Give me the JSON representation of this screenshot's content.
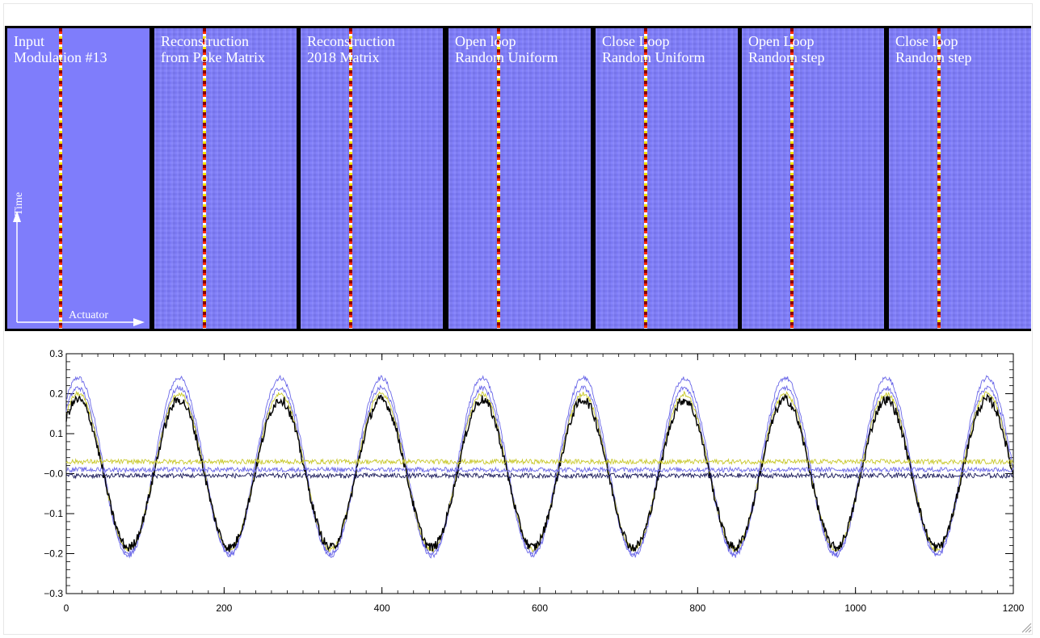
{
  "panels": [
    {
      "line1": "Input",
      "line2": "Modulation #13",
      "noisy": false
    },
    {
      "line1": "Reconstruction",
      "line2": "from Poke Matrix",
      "noisy": true
    },
    {
      "line1": "Reconstruction",
      "line2": "2018 Matrix",
      "noisy": true
    },
    {
      "line1": "Open loop",
      "line2": "Random Uniform",
      "noisy": true
    },
    {
      "line1": "Close Loop",
      "line2": "Random Uniform",
      "noisy": true
    },
    {
      "line1": "Open Loop",
      "line2": "Random step",
      "noisy": true
    },
    {
      "line1": "Close loop",
      "line2": "Random step",
      "noisy": true
    }
  ],
  "axes_labels": {
    "time": "Time",
    "actuator": "Actuator"
  },
  "colors": {
    "panel_bg": "#7f7dfb",
    "stripe": [
      "#8b0000",
      "#ff2a00",
      "#ffffff",
      "#f5e400"
    ],
    "series_black": "#000000",
    "series_blue": "#6a67e8",
    "series_yellow": "#c8c82a",
    "series_navy": "#1a1a5a"
  },
  "chart_data": {
    "type": "line",
    "xlim": [
      0,
      1200
    ],
    "ylim": [
      -0.3,
      0.3
    ],
    "xticks": [
      0,
      200,
      400,
      600,
      800,
      1000,
      1200
    ],
    "yticks": [
      -0.3,
      -0.2,
      -0.1,
      -0.0,
      0.1,
      0.2,
      0.3
    ],
    "xtick_labels": [
      "0",
      "200",
      "400",
      "600",
      "800",
      "1000",
      "1200"
    ],
    "ytick_labels": [
      "−0.3",
      "−0.2",
      "−0.1",
      "−0.0",
      "0.1",
      "0.2",
      "0.3"
    ],
    "period": 128,
    "phase_peak_x": 15,
    "series": [
      {
        "color": "#6a67e8",
        "amplitude": 0.22,
        "offset": 0.02,
        "noise": 0.006
      },
      {
        "color": "#6a67e8",
        "amplitude": 0.21,
        "offset": 0.005,
        "noise": 0.006
      },
      {
        "color": "#c8c82a",
        "amplitude": 0.195,
        "offset": 0.005,
        "noise": 0.006
      },
      {
        "color": "#000000",
        "amplitude": 0.185,
        "offset": 0.0,
        "noise": 0.012
      },
      {
        "color": "#c8c82a",
        "amplitude": 0.0,
        "offset": 0.03,
        "noise": 0.006
      },
      {
        "color": "#6a67e8",
        "amplitude": 0.0,
        "offset": 0.01,
        "noise": 0.006
      },
      {
        "color": "#1a1a5a",
        "amplitude": 0.0,
        "offset": -0.005,
        "noise": 0.006
      }
    ]
  }
}
